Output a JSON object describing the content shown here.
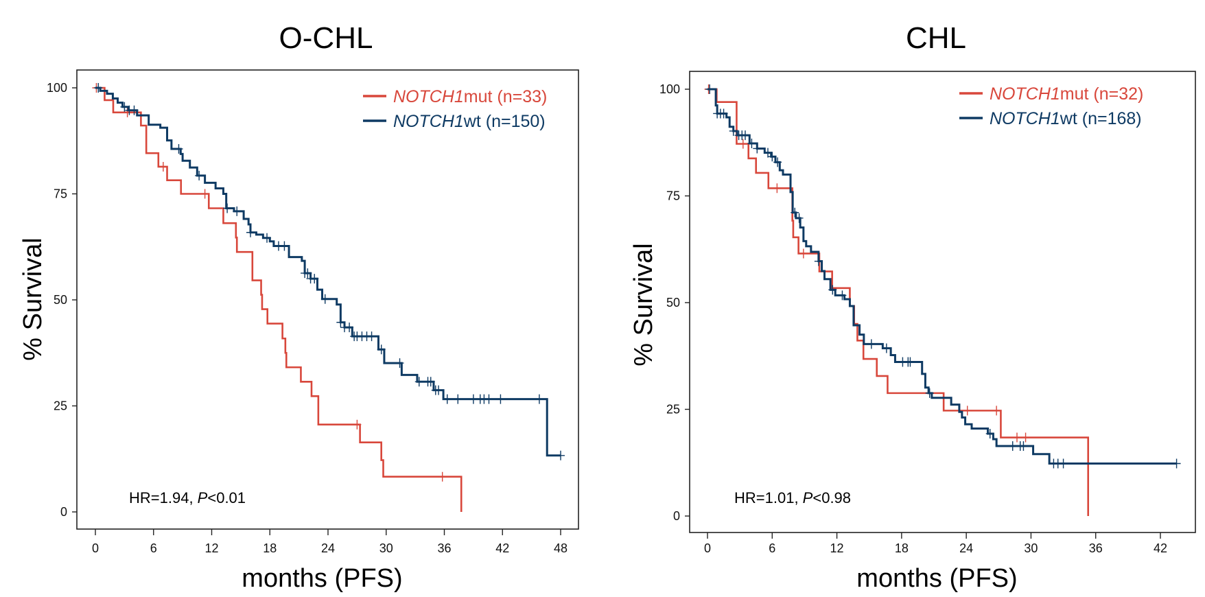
{
  "colors": {
    "mut": "#d8473b",
    "wt": "#0e3a63",
    "axis": "#222222"
  },
  "chart_data": [
    {
      "type": "line",
      "subtype": "kaplan-meier",
      "title": "O-CHL",
      "xlabel": "months (PFS)",
      "ylabel": "% Survival",
      "xlim": [
        0,
        48
      ],
      "ylim": [
        0,
        100
      ],
      "xticks": [
        0,
        6,
        12,
        18,
        24,
        30,
        36,
        42,
        48
      ],
      "yticks": [
        0,
        25,
        50,
        75,
        100
      ],
      "legend_position": "top-right",
      "annotation": {
        "hr": "HR=1.94, ",
        "p_label": "P",
        "p_value": "<0.01"
      },
      "series": [
        {
          "key": "mut",
          "name_italic": "NOTCH1",
          "name_rest": "mut (n=33)",
          "steps": [
            [
              0,
              100
            ],
            [
              0.95,
              97.1
            ],
            [
              1.84,
              94.2
            ],
            [
              4.7,
              91.1
            ],
            [
              5.25,
              84.6
            ],
            [
              6.5,
              81.4
            ],
            [
              7.4,
              78.2
            ],
            [
              8.83,
              75.0
            ],
            [
              11.7,
              71.6
            ],
            [
              13.2,
              68.1
            ],
            [
              14.5,
              64.7
            ],
            [
              14.6,
              61.3
            ],
            [
              16.2,
              54.6
            ],
            [
              17.1,
              51.2
            ],
            [
              17.2,
              47.8
            ],
            [
              17.75,
              44.4
            ],
            [
              19.3,
              40.9
            ],
            [
              19.6,
              37.5
            ],
            [
              19.7,
              34.1
            ],
            [
              21.2,
              30.7
            ],
            [
              22.3,
              27.3
            ],
            [
              23.0,
              20.6
            ],
            [
              27.3,
              16.4
            ],
            [
              29.5,
              12.2
            ],
            [
              29.7,
              8.3
            ],
            [
              37.75,
              0
            ]
          ],
          "end": 37.75,
          "censored": [
            0.1,
            3.3,
            7.0,
            11.3,
            27.0,
            35.8
          ]
        },
        {
          "key": "wt",
          "name_italic": "NOTCH1",
          "name_rest": "wt (n=150)",
          "steps": [
            [
              0,
              100
            ],
            [
              0.5,
              99.3
            ],
            [
              1.2,
              98.6
            ],
            [
              1.8,
              97.5
            ],
            [
              2.3,
              96.5
            ],
            [
              2.8,
              95.5
            ],
            [
              3.4,
              94.7
            ],
            [
              4.3,
              93.5
            ],
            [
              5.5,
              91.3
            ],
            [
              6.7,
              90.6
            ],
            [
              7.4,
              87.6
            ],
            [
              7.85,
              85.6
            ],
            [
              8.8,
              84.4
            ],
            [
              9.0,
              82.8
            ],
            [
              9.75,
              81.2
            ],
            [
              10.5,
              79.3
            ],
            [
              11.3,
              77.6
            ],
            [
              12.4,
              76.3
            ],
            [
              13.2,
              75.0
            ],
            [
              13.5,
              71.6
            ],
            [
              14.3,
              70.9
            ],
            [
              15.3,
              69.1
            ],
            [
              15.8,
              67.8
            ],
            [
              16.0,
              65.9
            ],
            [
              16.6,
              65.4
            ],
            [
              17.3,
              64.6
            ],
            [
              18.0,
              63.8
            ],
            [
              18.4,
              62.7
            ],
            [
              19.97,
              60.1
            ],
            [
              21.3,
              59.2
            ],
            [
              21.6,
              56.3
            ],
            [
              22.2,
              55.0
            ],
            [
              22.9,
              52.4
            ],
            [
              23.4,
              50.2
            ],
            [
              24.9,
              48.9
            ],
            [
              25.3,
              44.7
            ],
            [
              25.7,
              43.5
            ],
            [
              26.5,
              41.4
            ],
            [
              29.2,
              38.3
            ],
            [
              29.8,
              35.1
            ],
            [
              31.6,
              32.3
            ],
            [
              33.2,
              30.7
            ],
            [
              34.9,
              28.7
            ],
            [
              35.9,
              26.6
            ],
            [
              46.6,
              13.3
            ]
          ],
          "end": 48,
          "censored": [
            0.3,
            3.0,
            3.5,
            4.0,
            8.6,
            10.7,
            13.6,
            14.6,
            16.0,
            17.7,
            18.9,
            19.5,
            21.6,
            21.9,
            22.2,
            22.6,
            23.7,
            25.3,
            25.7,
            26.2,
            26.7,
            27.0,
            27.5,
            28.0,
            28.5,
            29.5,
            31.4,
            33.4,
            34.3,
            34.6,
            35.1,
            35.4,
            36.3,
            37.4,
            39.0,
            39.7,
            40.1,
            40.6,
            41.8,
            45.8,
            48.0
          ]
        }
      ]
    },
    {
      "type": "line",
      "subtype": "kaplan-meier",
      "title": "CHL",
      "xlabel": "months (PFS)",
      "ylabel": "% Survival",
      "xlim": [
        0,
        44
      ],
      "ylim": [
        0,
        100
      ],
      "xticks": [
        0,
        6,
        12,
        18,
        24,
        30,
        36,
        42
      ],
      "yticks": [
        0,
        25,
        50,
        75,
        100
      ],
      "legend_position": "top-right",
      "annotation": {
        "hr": "HR=1.01, ",
        "p_label": "P",
        "p_value": "<0.98"
      },
      "series": [
        {
          "key": "mut",
          "name_italic": "NOTCH1",
          "name_rest": "mut (n=32)",
          "steps": [
            [
              0,
              100
            ],
            [
              0.85,
              97.0
            ],
            [
              2.7,
              87.2
            ],
            [
              3.8,
              83.8
            ],
            [
              4.5,
              80.4
            ],
            [
              5.65,
              76.8
            ],
            [
              7.87,
              69.2
            ],
            [
              7.95,
              65.3
            ],
            [
              8.44,
              61.5
            ],
            [
              10.37,
              57.3
            ],
            [
              11.56,
              53.4
            ],
            [
              13.2,
              49.2
            ],
            [
              13.6,
              45.0
            ],
            [
              13.9,
              41.1
            ],
            [
              14.46,
              36.8
            ],
            [
              15.7,
              32.8
            ],
            [
              16.7,
              28.8
            ],
            [
              21.9,
              24.7
            ],
            [
              27.2,
              18.4
            ],
            [
              35.3,
              0
            ]
          ],
          "end": 35.3,
          "censored": [
            0.1,
            3.3,
            6.45,
            8.9,
            24.1,
            26.8,
            28.7,
            29.5
          ]
        },
        {
          "key": "wt",
          "name_italic": "NOTCH1",
          "name_rest": "wt (n=168)",
          "steps": [
            [
              0,
              100
            ],
            [
              0.77,
              96.2
            ],
            [
              0.9,
              94.3
            ],
            [
              1.76,
              93.4
            ],
            [
              2.05,
              91.2
            ],
            [
              2.4,
              90.2
            ],
            [
              2.75,
              89.2
            ],
            [
              3.9,
              87.3
            ],
            [
              4.6,
              86.1
            ],
            [
              5.3,
              85.1
            ],
            [
              5.9,
              84.2
            ],
            [
              6.3,
              82.9
            ],
            [
              6.7,
              81.0
            ],
            [
              7.0,
              80.0
            ],
            [
              7.7,
              75.9
            ],
            [
              7.9,
              71.1
            ],
            [
              8.2,
              69.8
            ],
            [
              8.6,
              67.6
            ],
            [
              8.9,
              64.4
            ],
            [
              9.15,
              63.2
            ],
            [
              9.6,
              61.9
            ],
            [
              10.3,
              59.7
            ],
            [
              10.6,
              57.4
            ],
            [
              10.85,
              55.5
            ],
            [
              11.4,
              53.0
            ],
            [
              11.85,
              51.7
            ],
            [
              12.7,
              50.8
            ],
            [
              13.2,
              49.2
            ],
            [
              13.55,
              44.7
            ],
            [
              14.1,
              42.5
            ],
            [
              14.5,
              40.3
            ],
            [
              16.25,
              39.3
            ],
            [
              17.0,
              37.7
            ],
            [
              17.4,
              36.1
            ],
            [
              19.9,
              33.3
            ],
            [
              20.2,
              30.1
            ],
            [
              20.5,
              28.8
            ],
            [
              20.8,
              27.7
            ],
            [
              22.6,
              26.1
            ],
            [
              23.35,
              24.4
            ],
            [
              23.6,
              23.1
            ],
            [
              23.9,
              21.5
            ],
            [
              24.5,
              20.5
            ],
            [
              26.0,
              19.3
            ],
            [
              26.5,
              18.0
            ],
            [
              26.8,
              16.4
            ],
            [
              30.2,
              14.5
            ],
            [
              31.7,
              12.3
            ]
          ],
          "end": 43.5,
          "censored": [
            0.2,
            0.9,
            1.2,
            1.5,
            2.4,
            2.9,
            3.2,
            3.5,
            4.1,
            4.6,
            5.6,
            6.0,
            6.5,
            8.1,
            8.5,
            10.3,
            11.6,
            12.5,
            15.2,
            16.6,
            18.1,
            18.6,
            18.8,
            20.6,
            26.2,
            28.3,
            29.0,
            29.3,
            32.1,
            32.5,
            33.0,
            43.5
          ]
        }
      ]
    }
  ]
}
